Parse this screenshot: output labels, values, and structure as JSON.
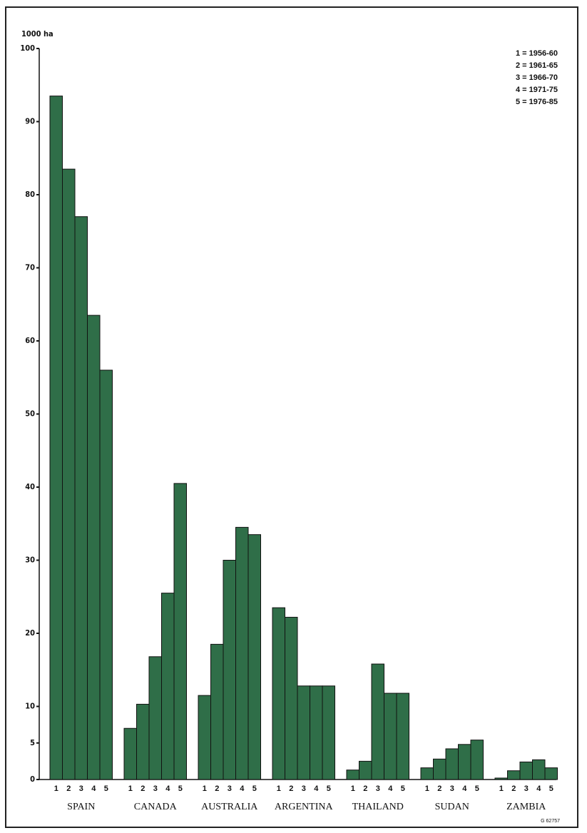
{
  "chart_data": {
    "type": "bar",
    "y_label": "1000 ha",
    "categories": [
      "SPAIN",
      "CANADA",
      "AUSTRALIA",
      "ARGENTINA",
      "THAILAND",
      "SUDAN",
      "ZAMBIA"
    ],
    "bar_labels": [
      "1",
      "2",
      "3",
      "4",
      "5"
    ],
    "series": [
      {
        "name": "1 = 1956-60",
        "color": "#2f6e48",
        "values": [
          93.5,
          7,
          11.5,
          23.5,
          1.3,
          1.6,
          0.2
        ]
      },
      {
        "name": "2 = 1961-65",
        "color": "#2f6e48",
        "values": [
          83.5,
          10.3,
          18.5,
          22.2,
          2.5,
          2.8,
          1.2
        ]
      },
      {
        "name": "3 = 1966-70",
        "color": "#2f6e48",
        "values": [
          77,
          16.8,
          30,
          12.8,
          15.8,
          4.2,
          2.4
        ]
      },
      {
        "name": "4 = 1971-75",
        "color": "#2f6e48",
        "values": [
          63.5,
          25.5,
          34.5,
          12.8,
          11.8,
          4.8,
          2.7
        ]
      },
      {
        "name": "5 = 1976-85",
        "color": "#2f6e48",
        "values": [
          56,
          40.5,
          33.5,
          12.8,
          11.8,
          5.4,
          1.6
        ]
      }
    ],
    "ylim": [
      0,
      100
    ],
    "yticks": [
      0,
      5,
      10,
      20,
      30,
      40,
      50,
      60,
      70,
      80,
      90,
      100
    ],
    "stamp": "G 62757"
  }
}
